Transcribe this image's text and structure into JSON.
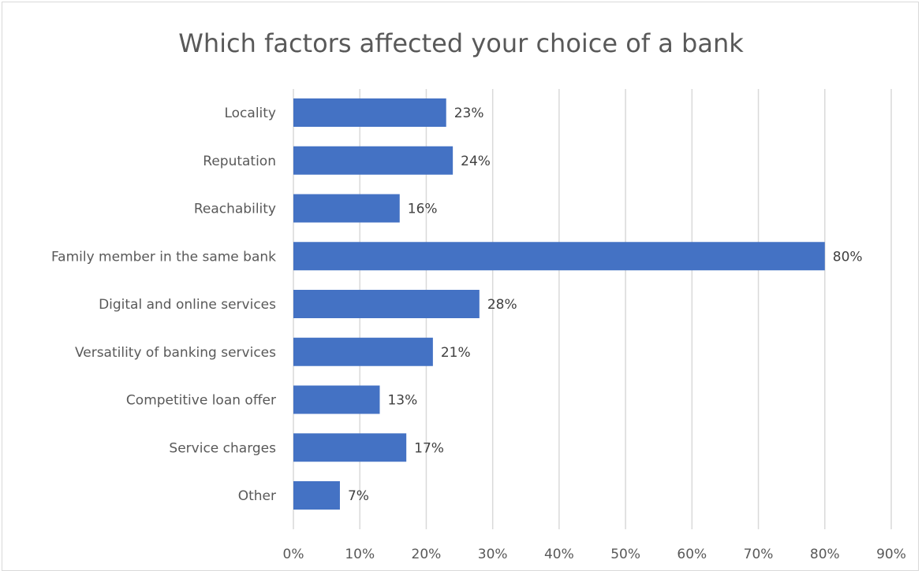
{
  "chart_data": {
    "type": "bar",
    "orientation": "horizontal",
    "title": "Which factors affected your choice of a bank",
    "categories": [
      "Locality",
      "Reputation",
      "Reachability",
      "Family member in the same bank",
      "Digital and online services",
      "Versatility of banking services",
      "Competitive loan offer",
      "Service charges",
      "Other"
    ],
    "values": [
      23,
      24,
      16,
      80,
      28,
      21,
      13,
      17,
      7
    ],
    "data_labels": [
      "23%",
      "24%",
      "16%",
      "80%",
      "28%",
      "21%",
      "13%",
      "17%",
      "7%"
    ],
    "x_ticks": [
      "0%",
      "10%",
      "20%",
      "30%",
      "40%",
      "50%",
      "60%",
      "70%",
      "80%",
      "90%"
    ],
    "xlim": [
      0,
      90
    ],
    "grid": "vertical",
    "legend": "none",
    "bar_color": "#4472c4",
    "grid_color": "#d9d9d9"
  }
}
